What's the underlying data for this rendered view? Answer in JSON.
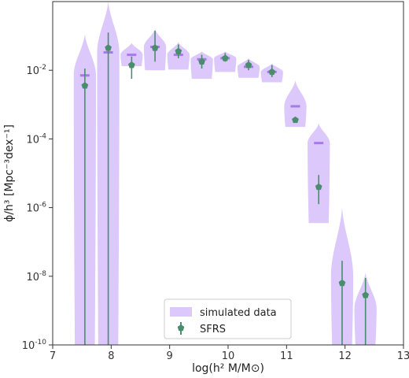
{
  "chart_data": {
    "type": "scatter",
    "title": "",
    "xlabel": "log(h² M/M⊙)",
    "ylabel": "ϕ/h³ [Mpc⁻³dex⁻¹]",
    "xlim": [
      7,
      13
    ],
    "ylim_log10": [
      -10,
      0
    ],
    "yscale": "log",
    "grid": false,
    "legend_position": "bottom-center",
    "x_ticks": [
      "7",
      "8",
      "9",
      "10",
      "11",
      "12",
      "13"
    ],
    "y_ticks": [
      {
        "base": "10",
        "exp": "-10",
        "log": -10
      },
      {
        "base": "10",
        "exp": "-8",
        "log": -8
      },
      {
        "base": "10",
        "exp": "-6",
        "log": -6
      },
      {
        "base": "10",
        "exp": "-4",
        "log": -4
      },
      {
        "base": "10",
        "exp": "-2",
        "log": -2
      }
    ],
    "colors": {
      "violin": "#dcc8fa",
      "median": "#a779e9",
      "sfrs": "#4a8c6e"
    },
    "series": [
      {
        "name": "simulated data",
        "kind": "violin",
        "x": [
          7.55,
          7.95,
          8.35,
          8.75,
          9.15,
          9.55,
          9.95,
          10.35,
          10.75,
          11.15,
          11.55,
          11.95,
          12.35
        ],
        "median_log10": [
          -2.15,
          -1.48,
          -1.55,
          -1.32,
          -1.55,
          -1.68,
          -1.65,
          -1.9,
          -2.05,
          -3.05,
          -4.12,
          null,
          null
        ],
        "range_log10": [
          [
            -10,
            -0.95
          ],
          [
            -10,
            0
          ],
          [
            -1.88,
            -1.2
          ],
          [
            -2.0,
            -0.8
          ],
          [
            -1.98,
            -1.18
          ],
          [
            -2.25,
            -1.45
          ],
          [
            -2.05,
            -1.45
          ],
          [
            -2.22,
            -1.65
          ],
          [
            -2.35,
            -1.8
          ],
          [
            -3.65,
            -2.3
          ],
          [
            -6.45,
            -3.55
          ],
          [
            -10,
            -6.0
          ],
          [
            -10,
            -7.9
          ]
        ]
      },
      {
        "name": "SFRS",
        "kind": "errorbar",
        "x": [
          7.55,
          7.95,
          8.35,
          8.75,
          9.15,
          9.55,
          9.95,
          10.35,
          10.75,
          11.15,
          11.55,
          11.95,
          12.35
        ],
        "y_log10": [
          -2.45,
          -1.35,
          -1.85,
          -1.35,
          -1.45,
          -1.75,
          -1.65,
          -1.85,
          -2.05,
          -3.45,
          -5.4,
          -8.2,
          -8.55
        ],
        "err_log10": [
          [
            -10,
            -1.95
          ],
          [
            -10,
            -0.9
          ],
          [
            -2.25,
            -1.6
          ],
          [
            -1.75,
            -0.85
          ],
          [
            -1.65,
            -1.25
          ],
          [
            -1.95,
            -1.55
          ],
          [
            -1.75,
            -1.5
          ],
          [
            -2.0,
            -1.7
          ],
          [
            -2.2,
            -1.85
          ],
          [
            -3.5,
            -3.4
          ],
          [
            -5.9,
            -5.05
          ],
          [
            -10,
            -7.55
          ],
          [
            -10,
            -8.05
          ]
        ]
      }
    ]
  }
}
